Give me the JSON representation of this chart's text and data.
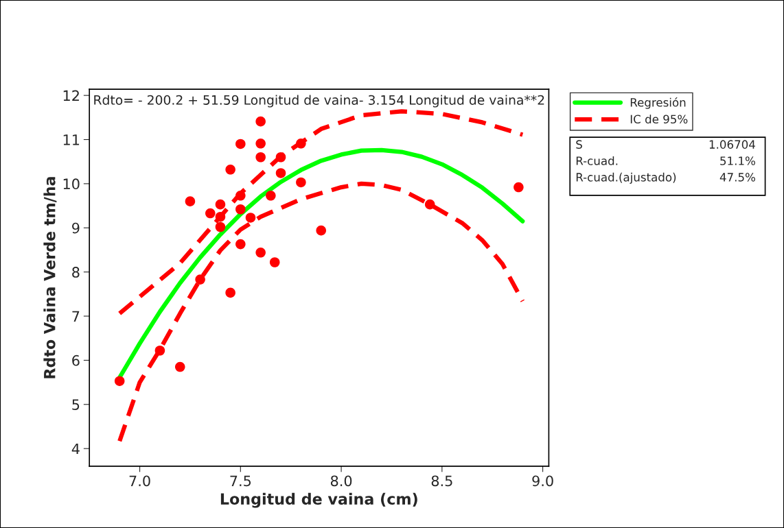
{
  "chart_data": {
    "type": "scatter",
    "xlabel": "Longitud de vaina (cm)",
    "ylabel": "Rdto Vaina Verde tm/ha",
    "annotations": [
      "Rdto= - 200.2 + 51.59 Longitud de vaina- 3.154 Longitud de vaina**2",
      "S",
      "1.06704",
      "R-cuad.",
      "51.1%",
      "R-cuad.(ajustado)",
      "47.5%"
    ],
    "series": [
      {
        "color": "#ff0000",
        "marker": "circle",
        "x": [
          6.9,
          7.1,
          7.2,
          7.25,
          7.3,
          7.35,
          7.4,
          7.4,
          7.4,
          7.45,
          7.45,
          7.5,
          7.5,
          7.5,
          7.5,
          7.55,
          7.6,
          7.6,
          7.6,
          7.6,
          7.65,
          7.67,
          7.7,
          7.7,
          7.8,
          7.8,
          7.9,
          8.44,
          8.88
        ],
        "values": [
          5.53,
          6.22,
          5.85,
          9.6,
          7.83,
          9.33,
          9.53,
          9.25,
          9.02,
          10.32,
          7.53,
          9.73,
          10.9,
          9.42,
          8.63,
          9.23,
          11.41,
          10.91,
          10.6,
          8.44,
          9.73,
          8.22,
          10.6,
          10.24,
          10.91,
          10.03,
          8.94,
          9.53,
          9.92
        ]
      },
      {
        "type": "line",
        "name": "Regresión",
        "color": "#00ff00",
        "line_style": "solid",
        "x": [
          6.9,
          7.0,
          7.1,
          7.2,
          7.3,
          7.4,
          7.5,
          7.6,
          7.7,
          7.8,
          7.9,
          8.0,
          8.1,
          8.2,
          8.3,
          8.4,
          8.5,
          8.6,
          8.7,
          8.8,
          8.9
        ],
        "values": [
          5.61,
          6.38,
          7.1,
          7.75,
          8.33,
          8.85,
          9.31,
          9.71,
          10.04,
          10.31,
          10.52,
          10.66,
          10.75,
          10.76,
          10.72,
          10.61,
          10.44,
          10.2,
          9.91,
          9.55,
          9.15
        ]
      },
      {
        "type": "line",
        "name": "IC de 95%",
        "color": "#ff0000",
        "line_style": "dashed",
        "x": [
          6.9,
          7.2,
          7.5,
          7.7,
          7.9,
          8.1,
          8.3,
          8.5,
          8.7,
          8.9
        ],
        "values": [
          7.06,
          8.2,
          9.78,
          10.62,
          11.24,
          11.55,
          11.64,
          11.58,
          11.39,
          11.11
        ]
      },
      {
        "type": "line",
        "color": "#ff0000",
        "line_style": "dashed",
        "x": [
          6.9,
          7.0,
          7.1,
          7.2,
          7.3,
          7.4,
          7.5,
          7.6,
          7.8,
          8.0,
          8.1,
          8.2,
          8.3,
          8.44,
          8.6,
          8.7,
          8.8,
          8.9
        ],
        "values": [
          4.17,
          5.5,
          6.24,
          7.06,
          7.83,
          8.49,
          8.96,
          9.25,
          9.65,
          9.92,
          10.0,
          9.97,
          9.86,
          9.53,
          9.11,
          8.72,
          8.18,
          7.34
        ]
      }
    ],
    "xlim": [
      6.75,
      9.03
    ],
    "ylim": [
      3.6,
      12.14
    ],
    "xticks": [
      {
        "value": 7,
        "label": "7.0"
      },
      7.5,
      {
        "value": 8,
        "label": "8.0"
      },
      8.5,
      {
        "value": 9,
        "label": "9.0"
      }
    ],
    "yticks": [
      4,
      5,
      6,
      7,
      8,
      9,
      10,
      11,
      12
    ],
    "grid": false,
    "legend": "top right"
  }
}
